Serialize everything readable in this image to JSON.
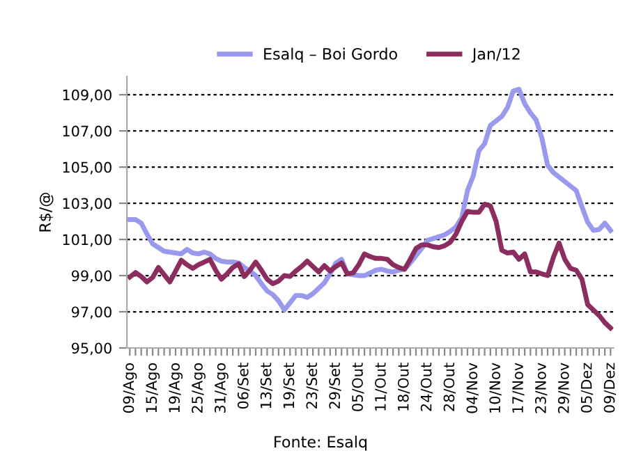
{
  "chart_data": {
    "type": "line",
    "ylabel": "R$/@",
    "annotations": [
      "Fonte: Esalq"
    ],
    "ylim": [
      95,
      110
    ],
    "yticks": [
      {
        "value": 95,
        "label": "95,00"
      },
      {
        "value": 97,
        "label": "97,00"
      },
      {
        "value": 99,
        "label": "99,00"
      },
      {
        "value": 101,
        "label": "101,00"
      },
      {
        "value": 103,
        "label": "103,00"
      },
      {
        "value": 105,
        "label": "105,00"
      },
      {
        "value": 107,
        "label": "107,00"
      },
      {
        "value": 109,
        "label": "109,00"
      }
    ],
    "categories": [
      "09/Ago",
      null,
      null,
      null,
      "15/Ago",
      null,
      null,
      null,
      "19/Ago",
      null,
      null,
      null,
      "25/Ago",
      null,
      null,
      null,
      "31/Ago",
      null,
      null,
      null,
      "06/Set",
      null,
      null,
      null,
      "13/Set",
      null,
      null,
      null,
      "19/Set",
      null,
      null,
      null,
      "23/Set",
      null,
      null,
      null,
      "29/Set",
      null,
      null,
      null,
      "05/Out",
      null,
      null,
      null,
      "11/Out",
      null,
      null,
      null,
      "18/Out",
      null,
      null,
      null,
      "24/Out",
      null,
      null,
      null,
      "28/Out",
      null,
      null,
      null,
      "04/Nov",
      null,
      null,
      null,
      "10/Nov",
      null,
      null,
      null,
      "17/Nov",
      null,
      null,
      null,
      "23/Nov",
      null,
      null,
      null,
      "29/Nov",
      null,
      null,
      null,
      "05/Dez",
      null,
      null,
      null,
      "09/Dez"
    ],
    "grid": "y",
    "legend": "top",
    "marker": "none",
    "line_style": "solid",
    "series": [
      {
        "name": "Esalq – Boi Gordo",
        "color": "#9999ee",
        "values": [
          102.1,
          102.1,
          101.9,
          101.3,
          100.75,
          100.55,
          100.35,
          100.3,
          100.25,
          100.2,
          100.45,
          100.25,
          100.2,
          100.3,
          100.2,
          99.95,
          99.8,
          99.75,
          99.75,
          99.7,
          99.45,
          99.25,
          99.0,
          98.55,
          98.15,
          97.95,
          97.6,
          97.1,
          97.5,
          97.9,
          97.9,
          97.8,
          98.0,
          98.3,
          98.6,
          99.1,
          99.7,
          99.9,
          99.1,
          99.05,
          99.0,
          99.0,
          99.15,
          99.3,
          99.35,
          99.25,
          99.2,
          99.3,
          99.35,
          99.7,
          100.1,
          100.5,
          100.95,
          101.05,
          101.15,
          101.25,
          101.45,
          101.7,
          102.2,
          103.7,
          104.5,
          105.9,
          106.3,
          107.3,
          107.55,
          107.8,
          108.3,
          109.2,
          109.3,
          108.5,
          108.0,
          107.6,
          106.6,
          105.1,
          104.7,
          104.45,
          104.2,
          103.95,
          103.7,
          102.8,
          101.95,
          101.5,
          101.55,
          101.9,
          101.5
        ]
      },
      {
        "name": "Jan/12",
        "color": "#8b2d5e",
        "values": [
          98.92,
          99.17,
          98.95,
          98.65,
          98.9,
          99.45,
          99.05,
          98.65,
          99.25,
          99.85,
          99.6,
          99.4,
          99.6,
          99.75,
          99.9,
          99.3,
          98.8,
          99.1,
          99.45,
          99.65,
          98.95,
          99.3,
          99.75,
          99.3,
          98.8,
          98.55,
          98.7,
          99.0,
          98.95,
          99.25,
          99.5,
          99.8,
          99.5,
          99.2,
          99.55,
          99.25,
          99.5,
          99.7,
          99.1,
          99.15,
          99.6,
          100.2,
          100.05,
          99.95,
          99.95,
          99.9,
          99.6,
          99.45,
          99.35,
          99.9,
          100.5,
          100.7,
          100.7,
          100.6,
          100.55,
          100.65,
          100.85,
          101.3,
          102.0,
          102.55,
          102.5,
          102.5,
          102.95,
          102.85,
          102.0,
          100.4,
          100.25,
          100.3,
          99.9,
          100.2,
          99.2,
          99.2,
          99.1,
          99.0,
          100.0,
          100.8,
          99.9,
          99.4,
          99.3,
          98.8,
          97.4,
          97.1,
          96.8,
          96.4,
          96.1
        ]
      }
    ]
  }
}
